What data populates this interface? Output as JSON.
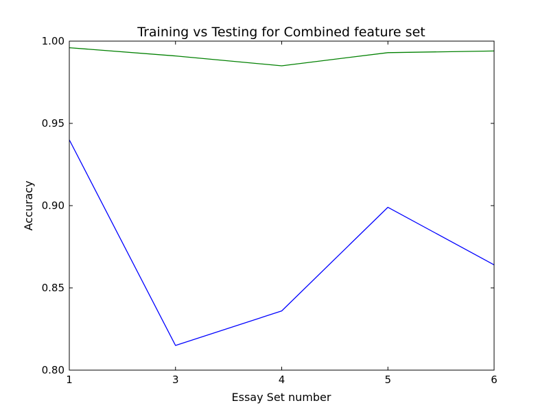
{
  "chart_data": {
    "type": "line",
    "title": "Training vs Testing for Combined feature set",
    "xlabel": "Essay Set number",
    "ylabel": "Accuracy",
    "categories": [
      "1",
      "3",
      "4",
      "5",
      "6"
    ],
    "ylim": [
      0.8,
      1.0
    ],
    "yticks": [
      "0.80",
      "0.85",
      "0.90",
      "0.95",
      "1.00"
    ],
    "grid": false,
    "series": [
      {
        "color": "#0000ff",
        "values": [
          0.94,
          0.815,
          0.836,
          0.899,
          0.864
        ]
      },
      {
        "color": "#008000",
        "values": [
          0.996,
          0.991,
          0.985,
          0.993,
          0.994
        ]
      }
    ]
  }
}
